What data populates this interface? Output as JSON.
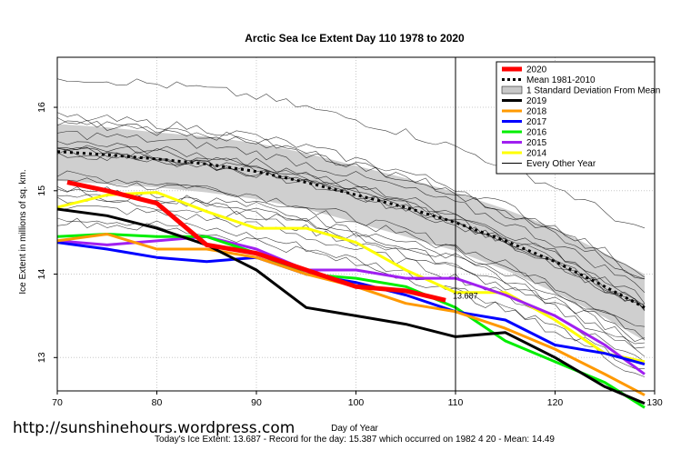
{
  "chart_data": {
    "type": "line",
    "title": "Arctic Sea Ice Extent Day 110 1978 to 2020",
    "xlabel": "Day of Year",
    "ylabel": "Ice Extent in millions of sq. km.",
    "xlim": [
      70,
      130
    ],
    "ylim": [
      12.6,
      16.6
    ],
    "x_ticks": [
      70,
      80,
      90,
      100,
      110,
      120,
      130
    ],
    "y_ticks": [
      13,
      14,
      15,
      16
    ],
    "grid": true,
    "legend_position": "top-right",
    "marker_day": 110,
    "current_value_label": "13.687",
    "legend": [
      {
        "label": "2020",
        "color": "#ff0000",
        "style": "thick"
      },
      {
        "label": "Mean 1981-2010",
        "color": "#000000",
        "style": "dotted"
      },
      {
        "label": "1 Standard Deviation From Mean",
        "color": "#c8c8c8",
        "style": "band"
      },
      {
        "label": "2019",
        "color": "#000000",
        "style": "line"
      },
      {
        "label": "2018",
        "color": "#ff9900",
        "style": "line"
      },
      {
        "label": "2017",
        "color": "#0000ff",
        "style": "line"
      },
      {
        "label": "2016",
        "color": "#00ee00",
        "style": "line"
      },
      {
        "label": "2015",
        "color": "#a020f0",
        "style": "line"
      },
      {
        "label": "2014",
        "color": "#ffff00",
        "style": "line"
      },
      {
        "label": "Every Other Year",
        "color": "#000000",
        "style": "thin"
      }
    ],
    "x": [
      70,
      75,
      80,
      85,
      90,
      95,
      100,
      105,
      110,
      115,
      120,
      125,
      129
    ],
    "mean": [
      15.47,
      15.43,
      15.38,
      15.32,
      15.23,
      15.1,
      14.95,
      14.8,
      14.62,
      14.4,
      14.15,
      13.85,
      13.6
    ],
    "std_upper": [
      15.8,
      15.76,
      15.7,
      15.65,
      15.57,
      15.45,
      15.3,
      15.15,
      14.98,
      14.78,
      14.55,
      14.25,
      14.0
    ],
    "std_lower": [
      15.12,
      15.08,
      15.04,
      14.98,
      14.9,
      14.78,
      14.62,
      14.45,
      14.28,
      14.05,
      13.78,
      13.48,
      13.2
    ],
    "series": [
      {
        "name": "2014",
        "color": "#ffff00",
        "x": [
          70,
          75,
          80,
          85,
          90,
          95,
          100,
          105,
          110,
          115,
          120,
          125,
          129
        ],
        "values": [
          14.8,
          14.95,
          14.98,
          14.75,
          14.55,
          14.55,
          14.38,
          14.05,
          13.78,
          13.78,
          13.45,
          13.05,
          12.95
        ]
      },
      {
        "name": "2015",
        "color": "#a020f0",
        "x": [
          70,
          75,
          80,
          85,
          90,
          95,
          100,
          105,
          110,
          115,
          120,
          125,
          129
        ],
        "values": [
          14.4,
          14.35,
          14.4,
          14.45,
          14.3,
          14.05,
          14.05,
          13.95,
          13.95,
          13.75,
          13.5,
          13.15,
          12.8
        ]
      },
      {
        "name": "2016",
        "color": "#00ee00",
        "x": [
          70,
          75,
          80,
          85,
          90,
          95,
          100,
          105,
          110,
          115,
          120,
          125,
          129
        ],
        "values": [
          14.45,
          14.48,
          14.45,
          14.45,
          14.25,
          14.0,
          13.95,
          13.85,
          13.6,
          13.2,
          12.95,
          12.7,
          12.4
        ]
      },
      {
        "name": "2017",
        "color": "#0000ff",
        "x": [
          70,
          75,
          80,
          85,
          90,
          95,
          100,
          105,
          110,
          115,
          120,
          125,
          129
        ],
        "values": [
          14.38,
          14.3,
          14.2,
          14.15,
          14.2,
          14.0,
          13.9,
          13.75,
          13.55,
          13.45,
          13.15,
          13.05,
          12.92
        ]
      },
      {
        "name": "2018",
        "color": "#ff9900",
        "x": [
          70,
          75,
          80,
          85,
          90,
          95,
          100,
          105,
          110,
          115,
          120,
          125,
          129
        ],
        "values": [
          14.4,
          14.48,
          14.3,
          14.3,
          14.2,
          14.0,
          13.85,
          13.65,
          13.55,
          13.35,
          13.1,
          12.8,
          12.55
        ]
      },
      {
        "name": "2019",
        "color": "#000000",
        "x": [
          70,
          75,
          80,
          85,
          90,
          95,
          100,
          105,
          110,
          115,
          120,
          125,
          129
        ],
        "values": [
          14.78,
          14.7,
          14.55,
          14.35,
          14.05,
          13.6,
          13.5,
          13.4,
          13.25,
          13.3,
          13.0,
          12.65,
          12.45
        ]
      },
      {
        "name": "2020",
        "color": "#ff0000",
        "x": [
          71,
          75,
          80,
          85,
          90,
          95,
          100,
          105,
          109
        ],
        "values": [
          15.1,
          15.0,
          14.85,
          14.35,
          14.25,
          14.05,
          13.85,
          13.8,
          13.687
        ]
      }
    ]
  },
  "footer": {
    "website": "http://sunshinehours.wordpress.com",
    "caption": "Today's Ice Extent: 13.687  - Record for the day: 15.387 which occurred on 1982 4 20  - Mean: 14.49"
  }
}
